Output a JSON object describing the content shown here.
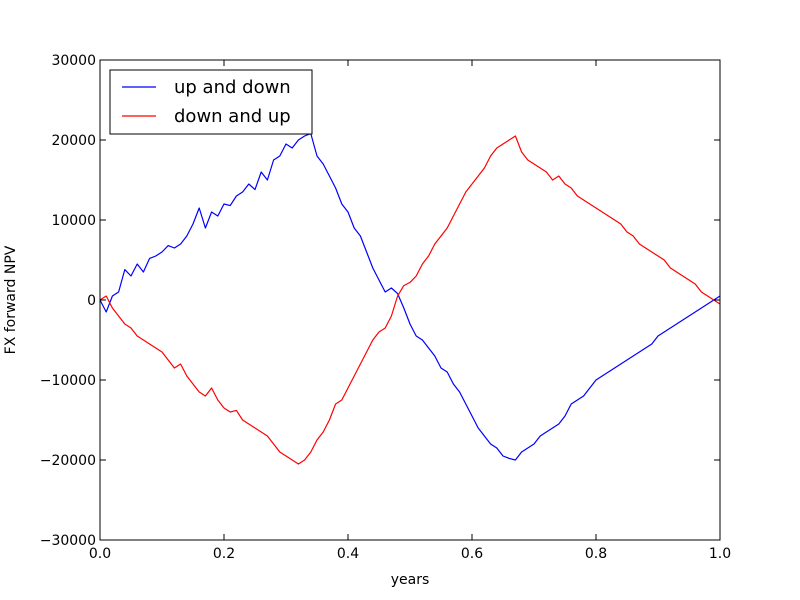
{
  "chart_data": {
    "type": "line",
    "title": "",
    "xlabel": "years",
    "ylabel": "FX forward NPV",
    "xlim": [
      0.0,
      1.0
    ],
    "ylim": [
      -30000,
      30000
    ],
    "xticks": [
      0.0,
      0.2,
      0.4,
      0.6,
      0.8,
      1.0
    ],
    "xtick_labels": [
      "0.0",
      "0.2",
      "0.4",
      "0.6",
      "0.8",
      "1.0"
    ],
    "yticks": [
      -30000,
      -20000,
      -10000,
      0,
      10000,
      20000,
      30000
    ],
    "ytick_labels": [
      "−30000",
      "−20000",
      "−10000",
      "0",
      "10000",
      "20000",
      "30000"
    ],
    "grid": false,
    "legend_position": "top-left",
    "series": [
      {
        "name": "up and down",
        "color": "#0000ff",
        "x": [
          0.0,
          0.01,
          0.02,
          0.03,
          0.04,
          0.05,
          0.06,
          0.07,
          0.08,
          0.09,
          0.1,
          0.11,
          0.12,
          0.13,
          0.14,
          0.15,
          0.16,
          0.17,
          0.18,
          0.19,
          0.2,
          0.21,
          0.22,
          0.23,
          0.24,
          0.25,
          0.26,
          0.27,
          0.28,
          0.29,
          0.3,
          0.31,
          0.32,
          0.33,
          0.34,
          0.35,
          0.36,
          0.37,
          0.38,
          0.39,
          0.4,
          0.41,
          0.42,
          0.43,
          0.44,
          0.45,
          0.46,
          0.47,
          0.48,
          0.49,
          0.5,
          0.51,
          0.52,
          0.53,
          0.54,
          0.55,
          0.56,
          0.57,
          0.58,
          0.59,
          0.6,
          0.61,
          0.62,
          0.63,
          0.64,
          0.65,
          0.66,
          0.67,
          0.68,
          0.69,
          0.7,
          0.71,
          0.72,
          0.73,
          0.74,
          0.75,
          0.76,
          0.77,
          0.78,
          0.79,
          0.8,
          0.81,
          0.82,
          0.83,
          0.84,
          0.85,
          0.86,
          0.87,
          0.88,
          0.89,
          0.9,
          0.91,
          0.92,
          0.93,
          0.94,
          0.95,
          0.96,
          0.97,
          0.98,
          0.99,
          1.0
        ],
        "values": [
          0,
          -1500,
          500,
          1000,
          3800,
          3000,
          4500,
          3500,
          5200,
          5500,
          6000,
          6800,
          6500,
          7000,
          8000,
          9500,
          11500,
          9000,
          11000,
          10500,
          12000,
          11800,
          13000,
          13500,
          14500,
          13800,
          16000,
          15000,
          17500,
          18000,
          19500,
          19000,
          20000,
          20500,
          20800,
          18000,
          17000,
          15500,
          14000,
          12000,
          11000,
          9000,
          8000,
          6000,
          4000,
          2500,
          1000,
          1500,
          800,
          -1000,
          -3000,
          -4500,
          -5000,
          -6000,
          -7000,
          -8500,
          -9000,
          -10500,
          -11500,
          -13000,
          -14500,
          -16000,
          -17000,
          -18000,
          -18500,
          -19500,
          -19800,
          -20000,
          -19000,
          -18500,
          -18000,
          -17000,
          -16500,
          -16000,
          -15500,
          -14500,
          -13000,
          -12500,
          -12000,
          -11000,
          -10000,
          -9500,
          -9000,
          -8500,
          -8000,
          -7500,
          -7000,
          -6500,
          -6000,
          -5500,
          -4500,
          -4000,
          -3500,
          -3000,
          -2500,
          -2000,
          -1500,
          -1000,
          -500,
          0,
          500
        ]
      },
      {
        "name": "down and up",
        "color": "#ff0000",
        "x": [
          0.0,
          0.01,
          0.02,
          0.03,
          0.04,
          0.05,
          0.06,
          0.07,
          0.08,
          0.09,
          0.1,
          0.11,
          0.12,
          0.13,
          0.14,
          0.15,
          0.16,
          0.17,
          0.18,
          0.19,
          0.2,
          0.21,
          0.22,
          0.23,
          0.24,
          0.25,
          0.26,
          0.27,
          0.28,
          0.29,
          0.3,
          0.31,
          0.32,
          0.33,
          0.34,
          0.35,
          0.36,
          0.37,
          0.38,
          0.39,
          0.4,
          0.41,
          0.42,
          0.43,
          0.44,
          0.45,
          0.46,
          0.47,
          0.48,
          0.49,
          0.5,
          0.51,
          0.52,
          0.53,
          0.54,
          0.55,
          0.56,
          0.57,
          0.58,
          0.59,
          0.6,
          0.61,
          0.62,
          0.63,
          0.64,
          0.65,
          0.66,
          0.67,
          0.68,
          0.69,
          0.7,
          0.71,
          0.72,
          0.73,
          0.74,
          0.75,
          0.76,
          0.77,
          0.78,
          0.79,
          0.8,
          0.81,
          0.82,
          0.83,
          0.84,
          0.85,
          0.86,
          0.87,
          0.88,
          0.89,
          0.9,
          0.91,
          0.92,
          0.93,
          0.94,
          0.95,
          0.96,
          0.97,
          0.98,
          0.99,
          1.0
        ],
        "values": [
          0,
          500,
          -1000,
          -2000,
          -3000,
          -3500,
          -4500,
          -5000,
          -5500,
          -6000,
          -6500,
          -7500,
          -8500,
          -8000,
          -9500,
          -10500,
          -11500,
          -12000,
          -11000,
          -12500,
          -13500,
          -14000,
          -13800,
          -15000,
          -15500,
          -16000,
          -16500,
          -17000,
          -18000,
          -19000,
          -19500,
          -20000,
          -20500,
          -20000,
          -19000,
          -17500,
          -16500,
          -15000,
          -13000,
          -12500,
          -11000,
          -9500,
          -8000,
          -6500,
          -5000,
          -4000,
          -3500,
          -2000,
          500,
          1800,
          2200,
          3000,
          4500,
          5500,
          7000,
          8000,
          9000,
          10500,
          12000,
          13500,
          14500,
          15500,
          16500,
          18000,
          19000,
          19500,
          20000,
          20500,
          18500,
          17500,
          17000,
          16500,
          16000,
          15000,
          15500,
          14500,
          14000,
          13000,
          12500,
          12000,
          11500,
          11000,
          10500,
          10000,
          9500,
          8500,
          8000,
          7000,
          6500,
          6000,
          5500,
          5000,
          4000,
          3500,
          3000,
          2500,
          2000,
          1000,
          500,
          0,
          -500
        ]
      }
    ]
  }
}
